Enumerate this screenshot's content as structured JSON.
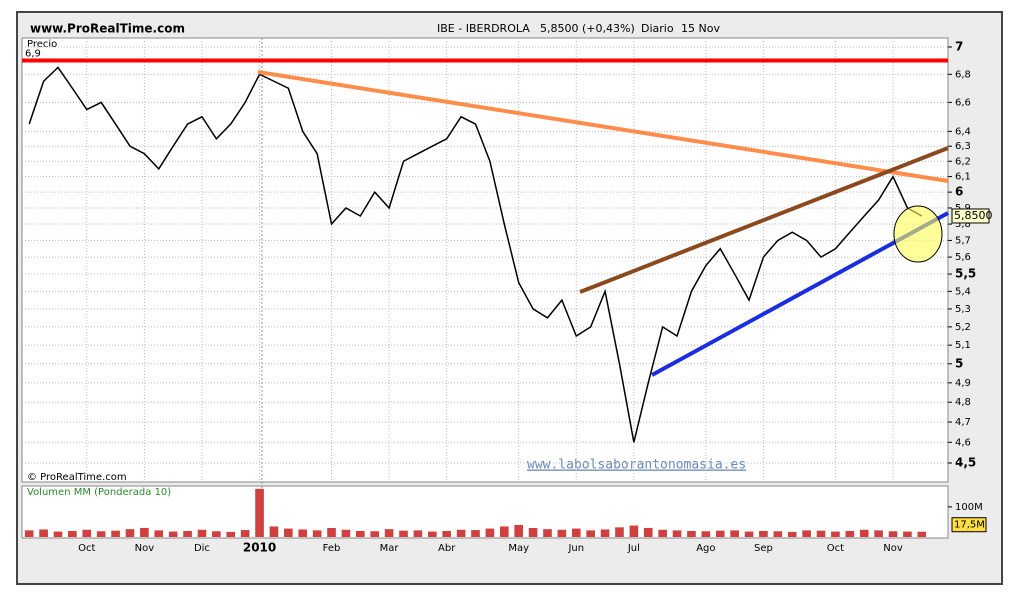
{
  "chart_data": {
    "type": "line",
    "site": "www.ProRealTime.com",
    "title": "IBE - IBERDROLA",
    "quote": "5,8500 (+0,43%)",
    "period": "Diario",
    "date": "15 Nov",
    "price_label": "Precio",
    "copyright": "© ProRealTime.com",
    "watermark": "www.labolsaborantonomasia.es",
    "log_scale": true,
    "grid": true,
    "categories": [
      null,
      null,
      null,
      null,
      "Oct",
      null,
      null,
      null,
      "Nov",
      null,
      null,
      null,
      "Dic",
      null,
      null,
      null,
      "2010",
      null,
      null,
      null,
      null,
      "Feb",
      null,
      null,
      null,
      "Mar",
      null,
      null,
      null,
      "Abr",
      null,
      null,
      null,
      null,
      "May",
      null,
      null,
      null,
      "Jun",
      null,
      null,
      null,
      "Jul",
      null,
      null,
      null,
      null,
      "Ago",
      null,
      null,
      null,
      "Sep",
      null,
      null,
      null,
      null,
      "Oct",
      null,
      null,
      null,
      "Nov",
      null,
      null
    ],
    "series": [
      {
        "name": "IBE - IBERDROLA",
        "color": "#000000",
        "values": [
          6.45,
          6.75,
          6.85,
          6.7,
          6.55,
          6.6,
          6.45,
          6.3,
          6.25,
          6.15,
          6.3,
          6.45,
          6.5,
          6.35,
          6.45,
          6.6,
          6.8,
          6.75,
          6.7,
          6.4,
          6.25,
          5.8,
          5.9,
          5.85,
          6.0,
          5.9,
          6.2,
          6.25,
          6.3,
          6.35,
          6.5,
          6.45,
          6.2,
          5.8,
          5.45,
          5.3,
          5.25,
          5.35,
          5.15,
          5.2,
          5.4,
          5.0,
          4.6,
          4.9,
          5.2,
          5.15,
          5.4,
          5.55,
          5.65,
          5.5,
          5.35,
          5.6,
          5.7,
          5.75,
          5.7,
          5.6,
          5.65,
          5.75,
          5.85,
          5.95,
          6.1,
          5.9,
          5.85
        ]
      }
    ],
    "ylim": [
      4.5,
      7
    ],
    "yticks": [
      7,
      {
        "value": 6.8,
        "label": "6,8"
      },
      {
        "value": 6.6,
        "label": "6,6"
      },
      {
        "value": 6.4,
        "label": "6,4"
      },
      {
        "value": 6.3,
        "label": "6,3"
      },
      {
        "value": 6.2,
        "label": "6,2"
      },
      {
        "value": 6.1,
        "label": "6,1"
      },
      6,
      {
        "value": 5.9,
        "label": "5,9"
      },
      {
        "value": 5.8,
        "label": "5,8"
      },
      {
        "value": 5.7,
        "label": "5,7"
      },
      {
        "value": 5.6,
        "label": "5,6"
      },
      {
        "value": 5.5,
        "label": "5,5"
      },
      {
        "value": 5.4,
        "label": "5,4"
      },
      {
        "value": 5.3,
        "label": "5,3"
      },
      {
        "value": 5.2,
        "label": "5,2"
      },
      {
        "value": 5.1,
        "label": "5,1"
      },
      5,
      {
        "value": 4.9,
        "label": "4,9"
      },
      {
        "value": 4.8,
        "label": "4,8"
      },
      {
        "value": 4.7,
        "label": "4,7"
      },
      {
        "value": 4.6,
        "label": "4,6"
      },
      {
        "value": 4.5,
        "label": "4,5"
      }
    ],
    "reference_line": {
      "value": 6.9,
      "label": "6,9",
      "color": "#ff0000"
    },
    "last_price": {
      "value": 5.85,
      "label": "5,8500"
    },
    "volume": {
      "title": "Volumen MM (Ponderada 10)",
      "color": "#d04040",
      "values": [
        22,
        25,
        18,
        20,
        24,
        19,
        21,
        26,
        30,
        22,
        18,
        20,
        24,
        19,
        17,
        23,
        160,
        35,
        28,
        25,
        22,
        30,
        24,
        20,
        19,
        26,
        21,
        22,
        18,
        20,
        24,
        23,
        28,
        35,
        40,
        30,
        26,
        24,
        28,
        22,
        25,
        32,
        38,
        30,
        24,
        22,
        20,
        19,
        21,
        22,
        18,
        20,
        19,
        17,
        22,
        21,
        18,
        20,
        24,
        22,
        19,
        18,
        17.5
      ],
      "ylim": [
        0,
        166
      ],
      "yticks": [
        {
          "value": 100,
          "label": "100M"
        }
      ],
      "last": {
        "value": 17.5,
        "label": "17,5M"
      }
    }
  }
}
